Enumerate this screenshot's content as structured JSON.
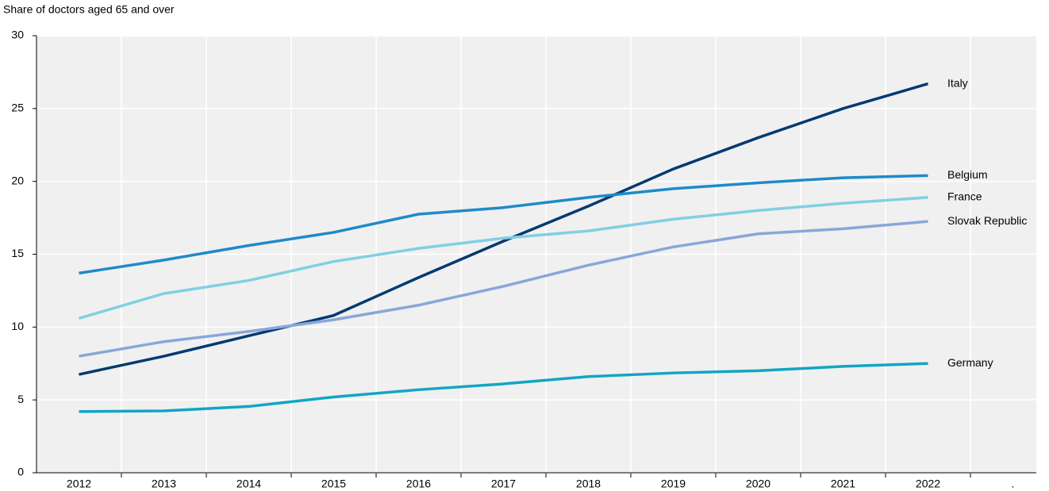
{
  "chart_data": {
    "type": "line",
    "y_axis_label": "Share of doctors aged 65 and over",
    "categories": [
      "2012",
      "2013",
      "2014",
      "2015",
      "2016",
      "2017",
      "2018",
      "2019",
      "2020",
      "2021",
      "2022",
      "."
    ],
    "series": [
      {
        "name": "Italy",
        "color": "#003a70",
        "values": [
          6.75,
          8.0,
          9.4,
          10.8,
          13.4,
          15.9,
          18.3,
          20.85,
          23.0,
          25.0,
          26.7,
          null
        ]
      },
      {
        "name": "Belgium",
        "color": "#1f8ac9",
        "values": [
          13.7,
          14.6,
          15.6,
          16.5,
          17.75,
          18.2,
          18.9,
          19.5,
          19.9,
          20.25,
          20.4,
          null
        ]
      },
      {
        "name": "France",
        "color": "#80d0e2",
        "values": [
          10.6,
          12.3,
          13.2,
          14.5,
          15.4,
          16.1,
          16.6,
          17.4,
          18.0,
          18.5,
          18.9,
          null
        ]
      },
      {
        "name": "Slovak Republic",
        "color": "#88a7d9",
        "values": [
          8.0,
          9.0,
          9.7,
          10.5,
          11.5,
          12.8,
          14.25,
          15.5,
          16.4,
          16.75,
          17.25,
          null
        ]
      },
      {
        "name": "Germany",
        "color": "#12a5c4",
        "values": [
          4.2,
          4.25,
          4.55,
          5.2,
          5.7,
          6.1,
          6.6,
          6.85,
          7.0,
          7.3,
          7.5,
          null
        ]
      }
    ],
    "ylim": [
      0,
      30
    ],
    "yticks": [
      0,
      5,
      10,
      15,
      20,
      25,
      30
    ],
    "grid": true
  }
}
